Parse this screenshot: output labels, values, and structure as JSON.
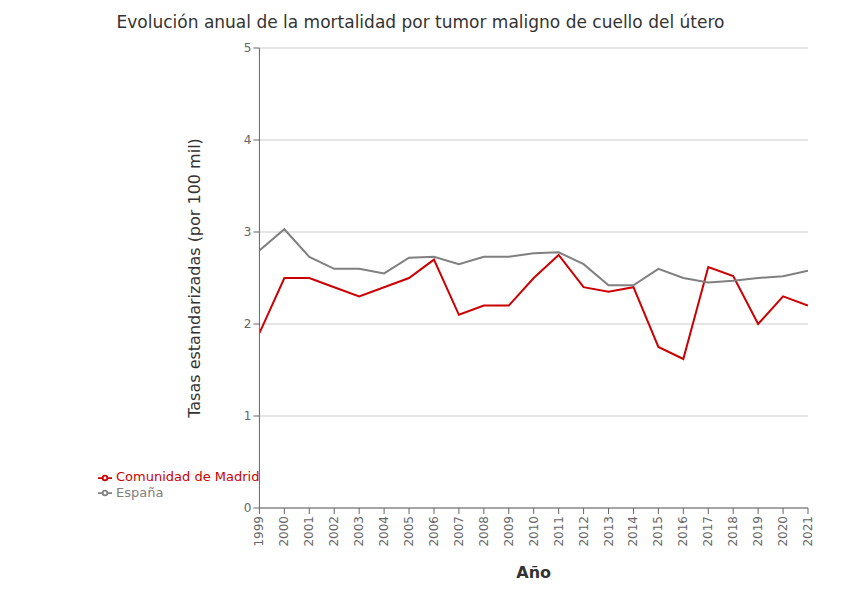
{
  "chart_data": {
    "type": "line",
    "title": "Evolución anual de la mortalidad por tumor maligno de cuello del útero",
    "xlabel": "Año",
    "ylabel": "Tasas estandarizadas (por 100 mil)",
    "x": [
      1999,
      2000,
      2001,
      2002,
      2003,
      2004,
      2005,
      2006,
      2007,
      2008,
      2009,
      2010,
      2011,
      2012,
      2013,
      2014,
      2015,
      2016,
      2017,
      2018,
      2019,
      2020,
      2021
    ],
    "series": [
      {
        "name": "Comunidad de Madrid",
        "color": "#cc0000",
        "values": [
          1.9,
          2.5,
          2.5,
          2.4,
          2.3,
          2.4,
          2.5,
          2.7,
          2.1,
          2.2,
          2.2,
          2.5,
          2.75,
          2.4,
          2.35,
          2.4,
          1.75,
          1.62,
          2.62,
          2.52,
          2.0,
          2.3,
          2.2
        ]
      },
      {
        "name": "España",
        "color": "#808080",
        "values": [
          2.8,
          3.03,
          2.73,
          2.6,
          2.6,
          2.55,
          2.72,
          2.73,
          2.65,
          2.73,
          2.73,
          2.77,
          2.78,
          2.65,
          2.42,
          2.42,
          2.6,
          2.5,
          2.45,
          2.47,
          2.5,
          2.52,
          2.58
        ]
      }
    ],
    "xlim": [
      1999,
      2021
    ],
    "xticks": [
      1999,
      2000,
      2001,
      2002,
      2003,
      2004,
      2005,
      2006,
      2007,
      2008,
      2009,
      2010,
      2011,
      2012,
      2013,
      2014,
      2015,
      2016,
      2017,
      2018,
      2019,
      2020,
      2021
    ],
    "ylim": [
      0,
      5
    ],
    "yticks": [
      0,
      1,
      2,
      3,
      4,
      5
    ],
    "grid": true,
    "legend": "lower left"
  }
}
